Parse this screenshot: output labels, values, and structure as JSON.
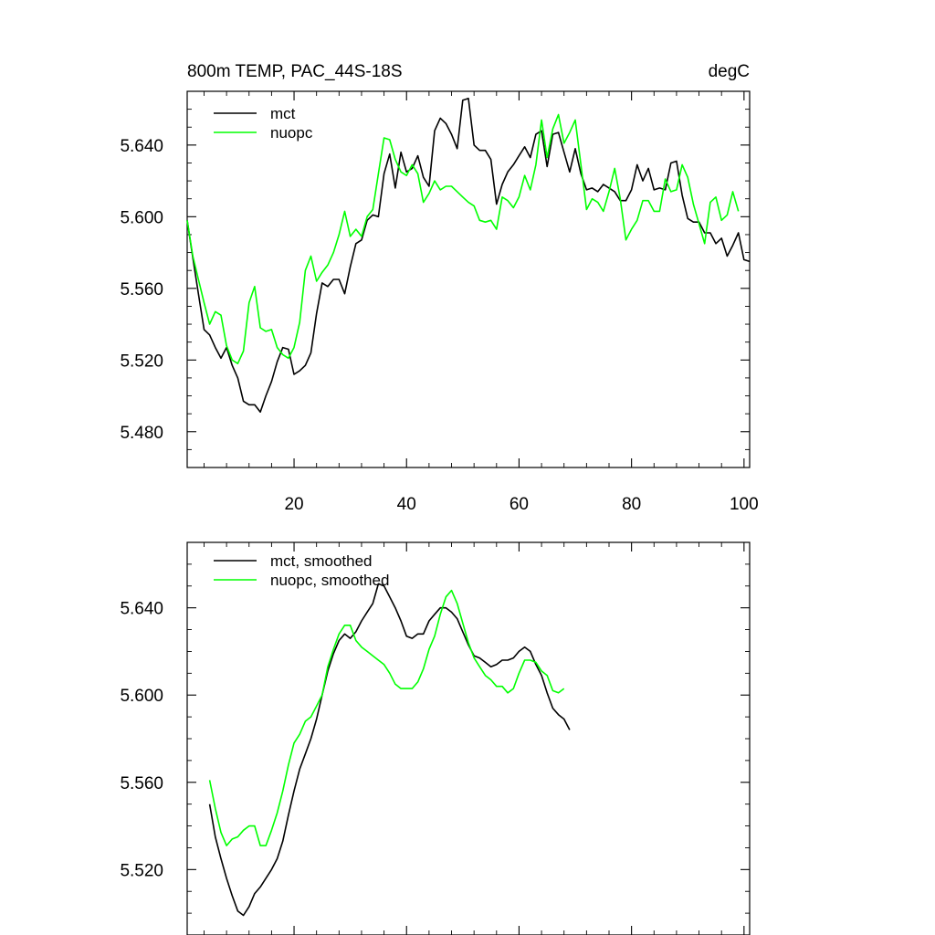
{
  "chart_data": [
    {
      "type": "line",
      "title": "800m TEMP, PAC_44S-18S",
      "units": "degC",
      "xlabel": "",
      "ylabel": "",
      "xlim": [
        1,
        101
      ],
      "ylim": [
        5.46,
        5.67
      ],
      "xticks": [
        20,
        40,
        60,
        80,
        100
      ],
      "xtick_labels": [
        "20",
        "40",
        "60",
        "80",
        "100"
      ],
      "yticks": [
        5.48,
        5.52,
        5.56,
        5.6,
        5.64
      ],
      "ytick_labels": [
        "5.480",
        "5.520",
        "5.560",
        "5.600",
        "5.640"
      ],
      "legend_position": "top-left",
      "series": [
        {
          "name": "mct",
          "color": "#000000",
          "x_start": 1,
          "values": [
            5.598,
            5.577,
            5.557,
            5.537,
            5.534,
            5.527,
            5.521,
            5.527,
            5.517,
            5.51,
            5.497,
            5.495,
            5.495,
            5.491,
            5.5,
            5.508,
            5.519,
            5.527,
            5.526,
            5.512,
            5.514,
            5.517,
            5.524,
            5.546,
            5.563,
            5.561,
            5.565,
            5.565,
            5.557,
            5.572,
            5.585,
            5.587,
            5.598,
            5.601,
            5.6,
            5.624,
            5.635,
            5.616,
            5.636,
            5.625,
            5.627,
            5.634,
            5.622,
            5.617,
            5.648,
            5.655,
            5.652,
            5.646,
            5.638,
            5.665,
            5.666,
            5.64,
            5.637,
            5.637,
            5.632,
            5.607,
            5.618,
            5.625,
            5.629,
            5.634,
            5.639,
            5.633,
            5.646,
            5.648,
            5.628,
            5.646,
            5.647,
            5.636,
            5.625,
            5.638,
            5.624,
            5.615,
            5.616,
            5.614,
            5.618,
            5.616,
            5.614,
            5.609,
            5.609,
            5.615,
            5.629,
            5.62,
            5.627,
            5.615,
            5.616,
            5.615,
            5.63,
            5.631,
            5.612,
            5.599,
            5.597,
            5.597,
            5.591,
            5.591,
            5.585,
            5.588,
            5.578,
            5.584,
            5.591,
            5.576,
            5.575
          ]
        },
        {
          "name": "nuopc",
          "color": "#00ff00",
          "x_start": 1,
          "values": [
            5.598,
            5.578,
            5.565,
            5.552,
            5.54,
            5.547,
            5.545,
            5.528,
            5.52,
            5.518,
            5.525,
            5.552,
            5.561,
            5.538,
            5.536,
            5.537,
            5.527,
            5.523,
            5.521,
            5.527,
            5.541,
            5.57,
            5.578,
            5.564,
            5.569,
            5.573,
            5.58,
            5.59,
            5.603,
            5.589,
            5.593,
            5.589,
            5.6,
            5.604,
            5.624,
            5.644,
            5.643,
            5.632,
            5.625,
            5.623,
            5.629,
            5.624,
            5.608,
            5.613,
            5.62,
            5.615,
            5.617,
            5.617,
            5.614,
            5.611,
            5.608,
            5.606,
            5.598,
            5.597,
            5.598,
            5.593,
            5.611,
            5.609,
            5.605,
            5.611,
            5.623,
            5.615,
            5.629,
            5.654,
            5.633,
            5.649,
            5.657,
            5.641,
            5.647,
            5.654,
            5.629,
            5.604,
            5.61,
            5.608,
            5.603,
            5.614,
            5.627,
            5.61,
            5.587,
            5.593,
            5.598,
            5.609,
            5.609,
            5.603,
            5.603,
            5.621,
            5.614,
            5.615,
            5.629,
            5.622,
            5.607,
            5.596,
            5.585,
            5.608,
            5.611,
            5.598,
            5.601,
            5.614,
            5.603
          ]
        }
      ]
    },
    {
      "type": "line",
      "title": "",
      "xlabel": "",
      "ylabel": "",
      "xlim": [
        1,
        101
      ],
      "ylim": [
        5.49,
        5.67
      ],
      "xticks": [
        20,
        40,
        60,
        80,
        100
      ],
      "yticks": [
        5.52,
        5.56,
        5.6,
        5.64
      ],
      "ytick_labels": [
        "5.520",
        "5.560",
        "5.600",
        "5.640"
      ],
      "legend_position": "top-left",
      "series": [
        {
          "name": "mct, smoothed",
          "color": "#000000",
          "x_start": 5,
          "values": [
            5.55,
            5.535,
            5.525,
            5.516,
            5.508,
            5.501,
            5.499,
            5.503,
            5.509,
            5.512,
            5.516,
            5.52,
            5.525,
            5.533,
            5.545,
            5.556,
            5.566,
            5.573,
            5.58,
            5.589,
            5.6,
            5.611,
            5.619,
            5.625,
            5.628,
            5.626,
            5.629,
            5.634,
            5.638,
            5.642,
            5.651,
            5.65,
            5.645,
            5.64,
            5.634,
            5.627,
            5.626,
            5.628,
            5.628,
            5.634,
            5.637,
            5.64,
            5.64,
            5.638,
            5.635,
            5.629,
            5.623,
            5.618,
            5.617,
            5.615,
            5.613,
            5.614,
            5.616,
            5.616,
            5.617,
            5.62,
            5.622,
            5.62,
            5.614,
            5.609,
            5.601,
            5.594,
            5.591,
            5.589,
            5.584
          ]
        },
        {
          "name": "nuopc, smoothed",
          "color": "#00ff00",
          "x_start": 5,
          "values": [
            5.561,
            5.548,
            5.537,
            5.531,
            5.534,
            5.535,
            5.538,
            5.54,
            5.54,
            5.531,
            5.531,
            5.538,
            5.546,
            5.556,
            5.568,
            5.578,
            5.582,
            5.588,
            5.59,
            5.595,
            5.6,
            5.613,
            5.621,
            5.628,
            5.632,
            5.632,
            5.625,
            5.622,
            5.62,
            5.618,
            5.616,
            5.614,
            5.61,
            5.605,
            5.603,
            5.603,
            5.603,
            5.606,
            5.612,
            5.621,
            5.627,
            5.637,
            5.645,
            5.648,
            5.642,
            5.633,
            5.624,
            5.617,
            5.613,
            5.609,
            5.607,
            5.604,
            5.604,
            5.601,
            5.603,
            5.61,
            5.616,
            5.616,
            5.615,
            5.611,
            5.609,
            5.602,
            5.601,
            5.603
          ]
        }
      ]
    }
  ]
}
